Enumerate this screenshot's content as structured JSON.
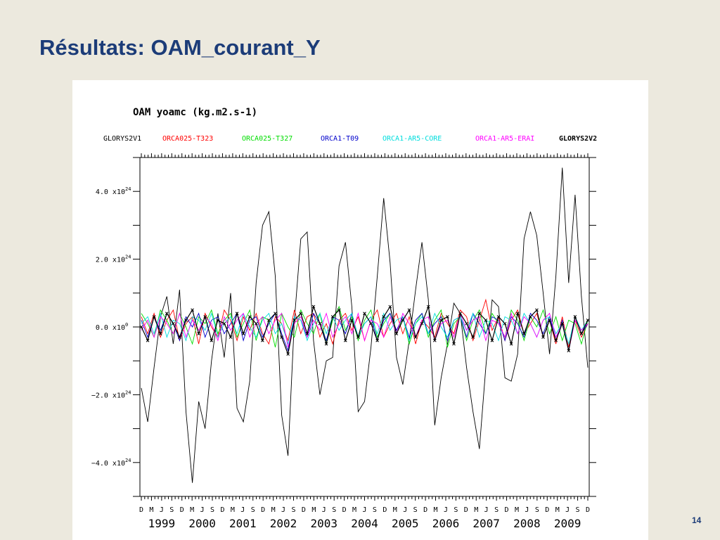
{
  "slide": {
    "title": "Résultats: OAM_courant_Y",
    "page_number": "14"
  },
  "chart_data": {
    "type": "line",
    "title": "OAM    yoamc    (kg.m2.s-1)",
    "legend_placement": "top",
    "ylim": [
      -5e+24,
      5e+24
    ],
    "y_ticks": [
      {
        "value": 4e+24,
        "mant": "4.0 x10",
        "exp": "24"
      },
      {
        "value": 2e+24,
        "mant": "2.0 x10",
        "exp": "24"
      },
      {
        "value": 0,
        "mant": "0.0 x10",
        "exp": "0"
      },
      {
        "value": -2e+24,
        "mant": "−2.0 x10",
        "exp": "24"
      },
      {
        "value": -4e+24,
        "mant": "−4.0 x10",
        "exp": "24"
      }
    ],
    "x_tick_months": [
      "D",
      "M",
      "J",
      "S",
      "D",
      "M",
      "J",
      "S",
      "D",
      "M",
      "J",
      "S",
      "D",
      "M",
      "J",
      "S",
      "D",
      "M",
      "J",
      "S",
      "D",
      "M",
      "J",
      "S",
      "D",
      "M",
      "J",
      "S",
      "D",
      "M",
      "J",
      "S",
      "D",
      "M",
      "J",
      "S",
      "D",
      "M",
      "J",
      "S",
      "D",
      "M",
      "J",
      "S",
      "D"
    ],
    "x_year_labels": [
      "1999",
      "2000",
      "2001",
      "2002",
      "2003",
      "2004",
      "2005",
      "2006",
      "2007",
      "2008",
      "2009"
    ],
    "x_range": [
      "1998-12",
      "2009-12"
    ],
    "series": [
      {
        "name": "GLORYS2V1",
        "color": "#000000",
        "values": [
          -1.8e+24,
          -2.8e+24,
          -1.2e+24,
          3e+23,
          9e+23,
          -5e+23,
          1.1e+24,
          -2.5e+24,
          -4.6e+24,
          -2.2e+24,
          -3e+24,
          -1e+24,
          4e+23,
          -9e+23,
          1e+24,
          -2.4e+24,
          -2.8e+24,
          -1.6e+24,
          1.3e+24,
          3e+24,
          3.4e+24,
          1.5e+24,
          -2.6e+24,
          -3.8e+24,
          2e+23,
          2.6e+24,
          2.8e+24,
          -4e+23,
          -2e+24,
          -1e+24,
          -9e+23,
          1.8e+24,
          2.5e+24,
          6e+23,
          -2.5e+24,
          -2.2e+24,
          -6e+23,
          1.5e+24,
          3.8e+24,
          1.9e+24,
          -9e+23,
          -1.7e+24,
          -4e+23,
          1.1e+24,
          2.5e+24,
          8e+23,
          -2.9e+24,
          -1.5e+24,
          -5e+23,
          7e+23,
          4e+23,
          -1.2e+24,
          -2.5e+24,
          -3.6e+24,
          -1.2e+24,
          8e+23,
          6e+23,
          -1.5e+24,
          -1.6e+24,
          -8e+23,
          2.6e+24,
          3.4e+24,
          2.7e+24,
          1e+24,
          -8e+23,
          1.5e+24,
          4.7e+24,
          1.3e+24,
          3.9e+24,
          9e+23,
          -1.2e+24
        ]
      },
      {
        "name": "ORCA025-T323",
        "color": "#FF0000",
        "values": [
          3e+23,
          -2e+23,
          4e+23,
          -3e+23,
          2e+23,
          5e+23,
          -4e+23,
          1e+23,
          3e+23,
          -5e+23,
          4e+23,
          0.0,
          -3e+23,
          5e+23,
          2e+23,
          -4e+23,
          3e+23,
          -1e+23,
          4e+23,
          -2e+23,
          -5e+23,
          3e+23,
          1e+23,
          -4e+23,
          5e+23,
          -2e+23,
          3e+23,
          4e+23,
          -3e+23,
          1e+23,
          -5e+23,
          2e+23,
          4e+23,
          -1e+23,
          3e+23,
          -4e+23,
          2e+23,
          5e+23,
          -3e+23,
          1e+23,
          4e+23,
          -2e+23,
          3e+23,
          -5e+23,
          2e+23,
          0.0,
          -3e+23,
          4e+23,
          1e+23,
          -2e+23,
          5e+23,
          3e+23,
          -4e+23,
          2e+23,
          8e+23,
          -1e+23,
          3e+23,
          -4e+23,
          2e+23,
          5e+23,
          -2e+23,
          1e+23,
          4e+23,
          -3e+23,
          2e+23,
          -5e+23,
          3e+23,
          -6e+23,
          2e+23,
          -3e+23,
          1e+23
        ]
      },
      {
        "name": "ORCA025-T327",
        "color": "#00DD00",
        "values": [
          4e+23,
          1e+23,
          -3e+23,
          5e+23,
          2e+23,
          -2e+23,
          4e+23,
          0.0,
          -5e+23,
          3e+23,
          1e+23,
          5e+23,
          -2e+23,
          2e+23,
          4e+23,
          -3e+23,
          1e+23,
          5e+23,
          -4e+23,
          3e+23,
          2e+23,
          -6e+23,
          4e+23,
          0.0,
          -3e+23,
          5e+23,
          1e+23,
          -2e+23,
          4e+23,
          -5e+23,
          2e+23,
          6e+23,
          -1e+23,
          3e+23,
          -4e+23,
          2e+23,
          5e+23,
          -3e+23,
          1e+23,
          4e+23,
          -2e+23,
          3e+23,
          -5e+23,
          1e+23,
          4e+23,
          -3e+23,
          2e+23,
          5e+23,
          -6e+23,
          1e+23,
          3e+23,
          -4e+23,
          2e+23,
          5e+23,
          -2e+23,
          4e+23,
          1e+23,
          -3e+23,
          5e+23,
          2e+23,
          -4e+23,
          3e+23,
          0.0,
          5e+23,
          -2e+23,
          3e+23,
          -4e+23,
          2e+23,
          1e+23,
          -5e+23,
          2e+23
        ]
      },
      {
        "name": "ORCA1-T09",
        "color": "#0000CC",
        "values": [
          2e+23,
          -3e+23,
          3e+23,
          -1e+23,
          4e+23,
          1e+23,
          -4e+23,
          3e+23,
          0.0,
          4e+23,
          -3e+23,
          2e+23,
          3e+23,
          -2e+23,
          1e+23,
          4e+23,
          -4e+23,
          2e+23,
          3e+23,
          -3e+23,
          1e+23,
          4e+23,
          -2e+23,
          -7e+23,
          3e+23,
          2e+23,
          -3e+23,
          4e+23,
          1e+23,
          -4e+23,
          3e+23,
          2e+23,
          -2e+23,
          4e+23,
          -3e+23,
          1e+23,
          3e+23,
          -4e+23,
          2e+23,
          4e+23,
          -1e+23,
          3e+23,
          -3e+23,
          2e+23,
          4e+23,
          -2e+23,
          1e+23,
          3e+23,
          -4e+23,
          2e+23,
          3e+23,
          -3e+23,
          4e+23,
          1e+23,
          -2e+23,
          3e+23,
          2e+23,
          -4e+23,
          3e+23,
          1e+23,
          -3e+23,
          4e+23,
          2e+23,
          -2e+23,
          3e+23,
          -4e+23,
          2e+23,
          -7e+23,
          3e+23,
          -2e+23,
          1e+23
        ]
      },
      {
        "name": "ORCA1-AR5-CORE",
        "color": "#00DDDD",
        "values": [
          1e+23,
          3e+23,
          -2e+23,
          4e+23,
          -3e+23,
          2e+23,
          1e+23,
          -4e+23,
          3e+23,
          2e+23,
          -1e+23,
          4e+23,
          -3e+23,
          1e+23,
          3e+23,
          -2e+23,
          4e+23,
          0.0,
          -3e+23,
          2e+23,
          4e+23,
          -2e+23,
          1e+23,
          -5e+23,
          3e+23,
          2e+23,
          -4e+23,
          1e+23,
          4e+23,
          -2e+23,
          3e+23,
          -1e+23,
          2e+23,
          4e+23,
          -3e+23,
          1e+23,
          3e+23,
          -2e+23,
          4e+23,
          -1e+23,
          2e+23,
          3e+23,
          -4e+23,
          1e+23,
          3e+23,
          -2e+23,
          4e+23,
          0.0,
          -3e+23,
          2e+23,
          3e+23,
          -1e+23,
          4e+23,
          -3e+23,
          2e+23,
          1e+23,
          -4e+23,
          3e+23,
          2e+23,
          -2e+23,
          4e+23,
          1e+23,
          -3e+23,
          2e+23,
          3e+23,
          -2e+23,
          1e+23,
          -5e+23,
          3e+23,
          -1e+23,
          2e+23
        ]
      },
      {
        "name": "ORCA1-AR5-ERAI",
        "color": "#FF00FF",
        "values": [
          -1e+23,
          2e+23,
          -3e+23,
          3e+23,
          1e+23,
          -2e+23,
          4e+23,
          -3e+23,
          2e+23,
          -1e+23,
          3e+23,
          1e+23,
          -4e+23,
          3e+23,
          -1e+23,
          2e+23,
          4e+23,
          -3e+23,
          1e+23,
          3e+23,
          -2e+23,
          2e+23,
          4e+23,
          -6e+23,
          1e+23,
          3e+23,
          -3e+23,
          2e+23,
          -1e+23,
          4e+23,
          -3e+23,
          1e+23,
          3e+23,
          -2e+23,
          4e+23,
          -4e+23,
          2e+23,
          1e+23,
          -3e+23,
          3e+23,
          -2e+23,
          4e+23,
          1e+23,
          -3e+23,
          2e+23,
          3e+23,
          -4e+23,
          1e+23,
          2e+23,
          -3e+23,
          4e+23,
          -1e+23,
          2e+23,
          3e+23,
          -4e+23,
          2e+23,
          1e+23,
          -3e+23,
          4e+23,
          -2e+23,
          3e+23,
          1e+23,
          -3e+23,
          2e+23,
          4e+23,
          -3e+23,
          1e+23,
          -7e+23,
          2e+23,
          -1e+23,
          1e+23
        ]
      },
      {
        "name": "GLORYS2V2",
        "color": "#000000",
        "bold": true,
        "markers": true,
        "values": [
          0.0,
          -4e+23,
          3e+23,
          -2e+23,
          4e+23,
          1e+23,
          -3e+23,
          2e+23,
          5e+23,
          -2e+23,
          3e+23,
          -4e+23,
          2e+23,
          1e+23,
          -3e+23,
          4e+23,
          -2e+23,
          3e+23,
          1e+23,
          -4e+23,
          2e+23,
          4e+23,
          -3e+23,
          -8e+23,
          2e+23,
          4e+23,
          -2e+23,
          6e+23,
          1e+23,
          -5e+23,
          3e+23,
          5e+23,
          -4e+23,
          2e+23,
          -3e+23,
          4e+23,
          1e+23,
          -4e+23,
          3e+23,
          6e+23,
          -2e+23,
          2e+23,
          5e+23,
          -3e+23,
          1e+23,
          6e+23,
          -4e+23,
          2e+23,
          3e+23,
          -5e+23,
          4e+23,
          1e+23,
          -3e+23,
          4e+23,
          2e+23,
          -4e+23,
          3e+23,
          1e+23,
          -5e+23,
          4e+23,
          -2e+23,
          3e+23,
          5e+23,
          -3e+23,
          2e+23,
          -4e+23,
          1e+23,
          -7e+23,
          3e+23,
          -2e+23,
          2e+23
        ]
      }
    ]
  }
}
